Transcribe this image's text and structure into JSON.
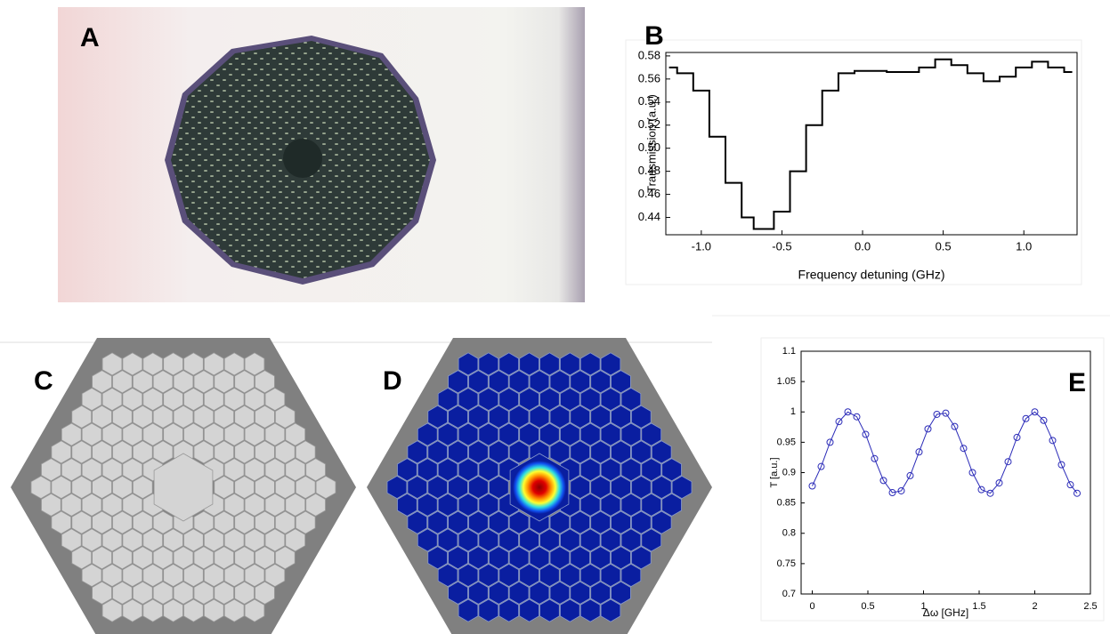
{
  "panel_labels": {
    "a": "A",
    "c": "C",
    "d": "D"
  },
  "chart_data": [
    {
      "type": "line",
      "panel_label": "B",
      "step": true,
      "x_label": "Frequency detuning (GHz)",
      "y_label": "Transmission (a.u.)",
      "x": [
        -1.2,
        -1.1,
        -1.0,
        -0.9,
        -0.8,
        -0.7,
        -0.65,
        -0.6,
        -0.5,
        -0.4,
        -0.3,
        -0.2,
        -0.1,
        0.0,
        0.1,
        0.2,
        0.3,
        0.4,
        0.5,
        0.6,
        0.7,
        0.8,
        0.9,
        1.0,
        1.1,
        1.2,
        1.3
      ],
      "series": [
        {
          "color": "#000000",
          "values": [
            0.57,
            0.565,
            0.55,
            0.51,
            0.47,
            0.44,
            0.43,
            0.43,
            0.445,
            0.48,
            0.52,
            0.55,
            0.565,
            0.567,
            0.567,
            0.566,
            0.566,
            0.57,
            0.577,
            0.572,
            0.565,
            0.558,
            0.562,
            0.57,
            0.575,
            0.57,
            0.566
          ]
        }
      ],
      "xlim": [
        -1.22,
        1.33
      ],
      "xticks": [
        {
          "value": -1,
          "label": "-1.0"
        },
        {
          "value": -0.5,
          "label": "-0.5"
        },
        {
          "value": 0,
          "label": "0.0"
        },
        {
          "value": 0.5,
          "label": "0.5"
        },
        {
          "value": 1,
          "label": "1.0"
        }
      ],
      "ylim": [
        0.425,
        0.583
      ],
      "yticks": [
        0.44,
        0.46,
        0.48,
        {
          "value": 0.5,
          "label": "0.50"
        },
        0.52,
        0.54,
        0.56,
        0.58
      ]
    },
    {
      "type": "line",
      "panel_label": "E",
      "marker": "circle",
      "x_label": "Δω [GHz]",
      "y_label": "T [a.u.]",
      "x": [
        0,
        0.08,
        0.16,
        0.24,
        0.32,
        0.4,
        0.48,
        0.56,
        0.64,
        0.72,
        0.8,
        0.88,
        0.96,
        1.04,
        1.12,
        1.2,
        1.28,
        1.36,
        1.44,
        1.52,
        1.6,
        1.68,
        1.76,
        1.84,
        1.92,
        2.0,
        2.08,
        2.16,
        2.24,
        2.32,
        2.38
      ],
      "series": [
        {
          "color": "#2b2bb8",
          "values": [
            0.878,
            0.91,
            0.95,
            0.984,
            1.0,
            0.992,
            0.963,
            0.923,
            0.887,
            0.867,
            0.87,
            0.895,
            0.934,
            0.972,
            0.996,
            0.998,
            0.976,
            0.94,
            0.9,
            0.872,
            0.866,
            0.883,
            0.918,
            0.958,
            0.989,
            1.0,
            0.986,
            0.953,
            0.913,
            0.88,
            0.866
          ]
        }
      ],
      "xlim": [
        -0.1,
        2.5
      ],
      "xticks": [
        0,
        0.5,
        1,
        1.5,
        2,
        2.5
      ],
      "ylim": [
        0.7,
        1.1
      ],
      "yticks": [
        0.7,
        0.75,
        0.8,
        0.85,
        0.9,
        0.95,
        1,
        1.05,
        1.1
      ]
    }
  ]
}
